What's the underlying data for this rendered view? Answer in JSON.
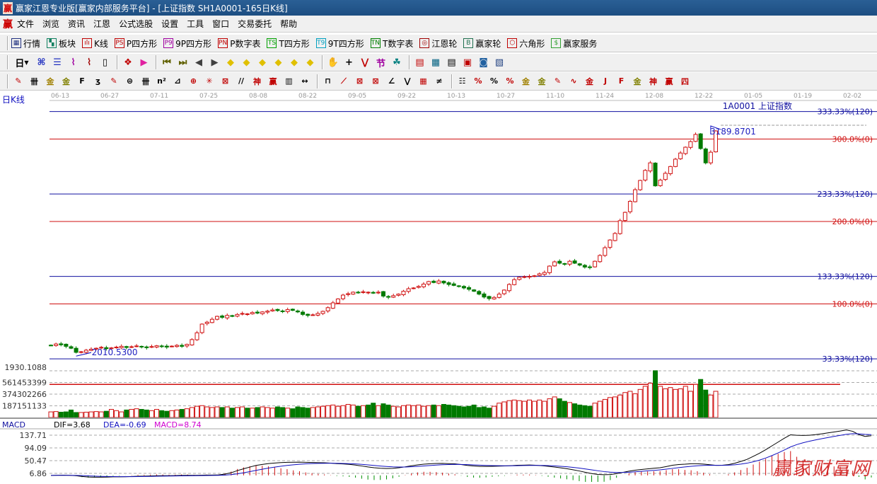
{
  "window": {
    "title": "赢家江恩专业版[赢家内部服务平台] - [上证指数  SH1A0001-165日K线]",
    "logo": "赢"
  },
  "menu": {
    "logo": "赢",
    "items": [
      "文件",
      "浏览",
      "资讯",
      "江恩",
      "公式选股",
      "设置",
      "工具",
      "窗口",
      "交易委托",
      "帮助"
    ]
  },
  "toolbar1": [
    {
      "icon": "table-icon",
      "glyph": "▦",
      "color": "#203080",
      "label": "行情"
    },
    {
      "icon": "blocks-icon",
      "glyph": "▚",
      "color": "#108060",
      "label": "板块"
    },
    {
      "icon": "candles-icon",
      "glyph": "ılı",
      "color": "#c00000",
      "label": "K线"
    },
    {
      "icon": "ps-icon",
      "glyph": "PS",
      "color": "#c00000",
      "label": "P四方形"
    },
    {
      "icon": "p9-icon",
      "glyph": "P9",
      "color": "#a000a0",
      "label": "9P四方形"
    },
    {
      "icon": "pn-icon",
      "glyph": "PN",
      "color": "#c00000",
      "label": "P数字表"
    },
    {
      "icon": "ts-icon",
      "glyph": "TS",
      "color": "#00a000",
      "label": "T四方形"
    },
    {
      "icon": "t9-icon",
      "glyph": "T9",
      "color": "#00a0c0",
      "label": "9T四方形"
    },
    {
      "icon": "tn-icon",
      "glyph": "TN",
      "color": "#008000",
      "label": "T数字表"
    },
    {
      "icon": "gann-wheel-icon",
      "glyph": "◎",
      "color": "#a00000",
      "label": "江恩轮"
    },
    {
      "icon": "big-wheel-icon",
      "glyph": "B",
      "color": "#207050",
      "label": "赢家轮"
    },
    {
      "icon": "hexagon-icon",
      "glyph": "⬡",
      "color": "#c00000",
      "label": "六角形"
    },
    {
      "icon": "dollar-icon",
      "glyph": "$",
      "color": "#30a030",
      "label": "赢家服务"
    }
  ],
  "toolbar2": {
    "period": "日",
    "icons": [
      {
        "name": "view-icon",
        "g": "⌘",
        "c": "#2030c0"
      },
      {
        "name": "notes-icon",
        "g": "☰",
        "c": "#2030c0"
      },
      {
        "name": "indicator3-icon",
        "g": "⌇",
        "c": "#a000a0"
      },
      {
        "name": "indicator9-icon",
        "g": "⌇",
        "c": "#a00000"
      },
      {
        "name": "candle-type-icon",
        "g": "▯",
        "c": "#000"
      },
      {
        "name": "pattern-icon",
        "g": "❖",
        "c": "#c00000"
      },
      {
        "name": "flag-icon",
        "g": "▶",
        "c": "#e020a0"
      },
      {
        "name": "first-icon",
        "g": "⏮",
        "c": "#606000"
      },
      {
        "name": "last-icon",
        "g": "⏭",
        "c": "#606000"
      },
      {
        "name": "prev-icon",
        "g": "◀",
        "c": "#404040"
      },
      {
        "name": "next-icon",
        "g": "▶",
        "c": "#404040"
      },
      {
        "name": "shift-left-icon",
        "g": "◆",
        "c": "#e0c000"
      },
      {
        "name": "shift-right-icon",
        "g": "◆",
        "c": "#e0c000"
      },
      {
        "name": "zoom-out-h-icon",
        "g": "◆",
        "c": "#e0c000"
      },
      {
        "name": "zoom-in-icon",
        "g": "◆",
        "c": "#e0c000"
      },
      {
        "name": "zoom-all-icon",
        "g": "◆",
        "c": "#e0c000"
      },
      {
        "name": "zoom-v-icon",
        "g": "◆",
        "c": "#e0c000"
      },
      {
        "name": "hand-icon",
        "g": "✋",
        "c": "#000"
      },
      {
        "name": "crosshair-icon",
        "g": "+",
        "c": "#000"
      },
      {
        "name": "line-icon",
        "g": "⋁",
        "c": "#c00000"
      },
      {
        "name": "festival-icon",
        "g": "节",
        "c": "#a000a0"
      },
      {
        "name": "gann-calc-icon",
        "g": "☘",
        "c": "#008080"
      },
      {
        "name": "calendar-icon",
        "g": "▤",
        "c": "#c00000"
      },
      {
        "name": "calculator-icon",
        "g": "▦",
        "c": "#006080"
      },
      {
        "name": "report-icon",
        "g": "▤",
        "c": "#000"
      },
      {
        "name": "save-icon",
        "g": "▣",
        "c": "#c00000"
      },
      {
        "name": "network-icon",
        "g": "◙",
        "c": "#2060a0"
      },
      {
        "name": "print-icon",
        "g": "▧",
        "c": "#204080"
      }
    ]
  },
  "toolbar3": [
    {
      "name": "pen-icon",
      "g": "✎",
      "c": "#c00000"
    },
    {
      "name": "grid-lines-icon",
      "g": "卌",
      "c": "#000"
    },
    {
      "name": "gold-icon",
      "g": "金",
      "c": "#a08000"
    },
    {
      "name": "gold2-icon",
      "g": "金",
      "c": "#808000"
    },
    {
      "name": "fib-icon",
      "g": "F",
      "c": "#000"
    },
    {
      "name": "spiral-icon",
      "g": "ʒ",
      "c": "#000"
    },
    {
      "name": "pen2-icon",
      "g": "✎",
      "c": "#c00000"
    },
    {
      "name": "circle-icon",
      "g": "⊜",
      "c": "#000"
    },
    {
      "name": "cycle-icon",
      "g": "卌",
      "c": "#000"
    },
    {
      "name": "n2-icon",
      "g": "n²",
      "c": "#000"
    },
    {
      "name": "triangle-icon",
      "g": "⊿",
      "c": "#000"
    },
    {
      "name": "target-icon",
      "g": "⊕",
      "c": "#c00000"
    },
    {
      "name": "radar-icon",
      "g": "✳",
      "c": "#c00000"
    },
    {
      "name": "box-icon",
      "g": "⊠",
      "c": "#c00000"
    },
    {
      "name": "slash-icon",
      "g": "//",
      "c": "#000"
    },
    {
      "name": "shen-icon",
      "g": "神",
      "c": "#c00000"
    },
    {
      "name": "ying-icon",
      "g": "赢",
      "c": "#c00000"
    },
    {
      "name": "ruler-icon",
      "g": "▥",
      "c": "#000"
    },
    {
      "name": "span-icon",
      "g": "↔",
      "c": "#000"
    },
    {
      "name": "frame-icon",
      "g": "⊓",
      "c": "#000"
    },
    {
      "name": "fan-icon",
      "g": "⟋",
      "c": "#c00000"
    },
    {
      "name": "gann-box-icon",
      "g": "⊠",
      "c": "#c00000"
    },
    {
      "name": "gann-square-icon",
      "g": "⊠",
      "c": "#c00000"
    },
    {
      "name": "angle-icon",
      "g": "∠",
      "c": "#000"
    },
    {
      "name": "zigzag-icon",
      "g": "⋁",
      "c": "#000"
    },
    {
      "name": "grid-icon",
      "g": "▦",
      "c": "#c00000"
    },
    {
      "name": "parallel-icon",
      "g": "≠",
      "c": "#000"
    },
    {
      "name": "scale-icon",
      "g": "☷",
      "c": "#000"
    },
    {
      "name": "percent-red-icon",
      "g": "%",
      "c": "#c00000"
    },
    {
      "name": "percent-icon",
      "g": "%",
      "c": "#000"
    },
    {
      "name": "percent-lines-icon",
      "g": "%",
      "c": "#c00000"
    },
    {
      "name": "gold-circle-icon",
      "g": "金",
      "c": "#a08000"
    },
    {
      "name": "gold-lines-icon",
      "g": "金",
      "c": "#808000"
    },
    {
      "name": "pen3-icon",
      "g": "✎",
      "c": "#c00000"
    },
    {
      "name": "wave-icon",
      "g": "∿",
      "c": "#c00000"
    },
    {
      "name": "gold-red-icon",
      "g": "金",
      "c": "#c00000"
    },
    {
      "name": "j-angle-icon",
      "g": "J",
      "c": "#c00000"
    },
    {
      "name": "f-angle-icon",
      "g": "F",
      "c": "#c00000"
    },
    {
      "name": "gold-angle-icon",
      "g": "金",
      "c": "#808000"
    },
    {
      "name": "shen-angle-icon",
      "g": "神",
      "c": "#c00000"
    },
    {
      "name": "ying-angle-icon",
      "g": "赢",
      "c": "#c00000"
    },
    {
      "name": "si-angle-icon",
      "g": "四",
      "c": "#c00000"
    }
  ],
  "chart": {
    "period_label": "日K线",
    "symbol_label": "1A0001  上证指数",
    "dates": [
      "06-13",
      "06-27",
      "07-11",
      "07-25",
      "08-08",
      "08-22",
      "09-05",
      "09-22",
      "10-13",
      "10-27",
      "11-10",
      "11-24",
      "12-08",
      "12-22",
      "01-05",
      "01-19",
      "02-02"
    ],
    "levels": [
      {
        "label": "333.33%(120)",
        "pct": 333.33,
        "color": "#1010a0"
      },
      {
        "label": "300.0%(0)",
        "pct": 300,
        "color": "#d01010"
      },
      {
        "label": "233.33%(120)",
        "pct": 233.33,
        "color": "#1010a0"
      },
      {
        "label": "200.0%(0)",
        "pct": 200,
        "color": "#d01010"
      },
      {
        "label": "133.33%(120)",
        "pct": 133.33,
        "color": "#1010a0"
      },
      {
        "label": "100.0%(0)",
        "pct": 100,
        "color": "#d01010"
      },
      {
        "label": "33.33%(120)",
        "pct": 33.33,
        "color": "#1010a0"
      }
    ],
    "high_label": "3189.8701",
    "low_label": "2010.5300",
    "high": 3189.87,
    "low": 2010.53,
    "up_color": "#d01010",
    "down_color": "#007a00"
  },
  "chart_data": {
    "type": "candlestick",
    "close": [
      2055,
      2062,
      2058,
      2050,
      2040,
      2019,
      2022,
      2030,
      2035,
      2040,
      2045,
      2038,
      2042,
      2046,
      2050,
      2044,
      2048,
      2052,
      2047,
      2043,
      2049,
      2053,
      2050,
      2046,
      2051,
      2055,
      2050,
      2060,
      2085,
      2120,
      2165,
      2175,
      2190,
      2205,
      2200,
      2210,
      2205,
      2215,
      2220,
      2218,
      2225,
      2222,
      2228,
      2232,
      2238,
      2235,
      2230,
      2240,
      2236,
      2228,
      2215,
      2210,
      2213,
      2220,
      2231,
      2250,
      2275,
      2295,
      2315,
      2322,
      2330,
      2328,
      2332,
      2330,
      2325,
      2330,
      2310,
      2304,
      2312,
      2320,
      2335,
      2348,
      2352,
      2360,
      2372,
      2385,
      2380,
      2388,
      2378,
      2370,
      2365,
      2360,
      2352,
      2345,
      2335,
      2320,
      2305,
      2297,
      2303,
      2320,
      2341,
      2370,
      2395,
      2407,
      2410,
      2412,
      2415,
      2425,
      2432,
      2465,
      2487,
      2480,
      2475,
      2490,
      2480,
      2470,
      2460,
      2458,
      2490,
      2520,
      2560,
      2600,
      2634,
      2700,
      2743,
      2800,
      2860,
      2908,
      2960,
      2999,
      2880,
      2910,
      2945,
      2980,
      3018,
      3050,
      3080,
      3109,
      3146,
      3073,
      2999,
      3054,
      3164
    ],
    "volume": [
      90000000.0,
      95000000.0,
      85000000.0,
      90000000.0,
      120000000.0,
      80000000.0,
      80000000.0,
      85000000.0,
      90000000.0,
      95000000.0,
      90000000.0,
      100000000.0,
      130000000.0,
      110000000.0,
      90000000.0,
      120000000.0,
      130000000.0,
      140000000.0,
      130000000.0,
      120000000.0,
      110000000.0,
      130000000.0,
      110000000.0,
      100000000.0,
      110000000.0,
      120000000.0,
      130000000.0,
      140000000.0,
      160000000.0,
      180000000.0,
      190000000.0,
      170000000.0,
      160000000.0,
      170000000.0,
      160000000.0,
      170000000.0,
      150000000.0,
      160000000.0,
      170000000.0,
      150000000.0,
      150000000.0,
      160000000.0,
      170000000.0,
      160000000.0,
      150000000.0,
      170000000.0,
      160000000.0,
      150000000.0,
      140000000.0,
      170000000.0,
      160000000.0,
      150000000.0,
      160000000.0,
      170000000.0,
      180000000.0,
      190000000.0,
      200000000.0,
      180000000.0,
      190000000.0,
      210000000.0,
      200000000.0,
      180000000.0,
      190000000.0,
      200000000.0,
      230000000.0,
      190000000.0,
      220000000.0,
      200000000.0,
      180000000.0,
      170000000.0,
      190000000.0,
      200000000.0,
      190000000.0,
      200000000.0,
      180000000.0,
      190000000.0,
      200000000.0,
      190000000.0,
      210000000.0,
      200000000.0,
      190000000.0,
      180000000.0,
      170000000.0,
      180000000.0,
      200000000.0,
      160000000.0,
      170000000.0,
      150000000.0,
      180000000.0,
      230000000.0,
      250000000.0,
      270000000.0,
      280000000.0,
      270000000.0,
      260000000.0,
      280000000.0,
      260000000.0,
      280000000.0,
      260000000.0,
      300000000.0,
      330000000.0,
      300000000.0,
      260000000.0,
      240000000.0,
      220000000.0,
      200000000.0,
      190000000.0,
      180000000.0,
      230000000.0,
      260000000.0,
      290000000.0,
      320000000.0,
      330000000.0,
      360000000.0,
      400000000.0,
      420000000.0,
      380000000.0,
      450000000.0,
      500000000.0,
      550000000.0,
      750000000.0,
      500000000.0,
      460000000.0,
      480000000.0,
      450000000.0,
      460000000.0,
      500000000.0,
      420000000.0,
      530000000.0,
      610000000.0,
      440000000.0,
      360000000.0,
      420000000.0
    ],
    "volume_ma": 530000000.0,
    "volume_ticks": [
      "1930.1088",
      "561453399",
      "374302266",
      "187151133"
    ],
    "volume_tick_values": [
      187151133,
      374302266,
      561453399
    ]
  },
  "macd": {
    "title": "MACD",
    "dif": "DIF=3.68",
    "dea": "DEA=-0.69",
    "macd": "MACD=8.74",
    "ticks": [
      "137.71",
      "94.09",
      "50.47",
      "6.86"
    ],
    "tick_values": [
      137.71,
      94.09,
      50.47,
      6.86
    ],
    "dif_color": "#000000",
    "dea_color": "#1010c0",
    "macd_color": "#d000d0"
  },
  "watermark": "赢家财富网"
}
